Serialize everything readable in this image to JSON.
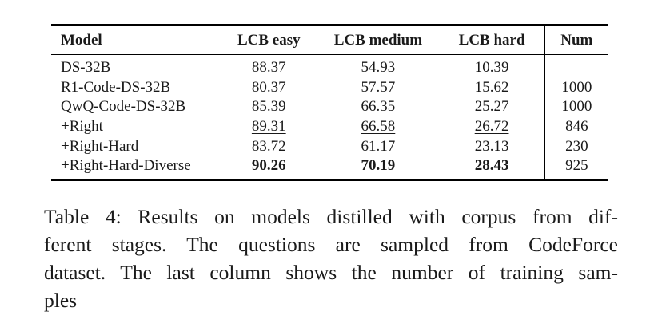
{
  "table": {
    "headers": [
      "Model",
      "LCB easy",
      "LCB medium",
      "LCB hard",
      "Num"
    ],
    "rows": [
      {
        "model": "DS-32B",
        "easy": "88.37",
        "medium": "54.93",
        "hard": "10.39",
        "num": ""
      },
      {
        "model": "R1-Code-DS-32B",
        "easy": "80.37",
        "medium": "57.57",
        "hard": "15.62",
        "num": "1000"
      },
      {
        "model": "QwQ-Code-DS-32B",
        "easy": "85.39",
        "medium": "66.35",
        "hard": "25.27",
        "num": "1000"
      },
      {
        "model": "+Right",
        "easy": "89.31",
        "medium": "66.58",
        "hard": "26.72",
        "num": "846"
      },
      {
        "model": "+Right-Hard",
        "easy": "83.72",
        "medium": "61.17",
        "hard": "23.13",
        "num": "230"
      },
      {
        "model": "+Right-Hard-Diverse",
        "easy": "90.26",
        "medium": "70.19",
        "hard": "28.43",
        "num": "925"
      }
    ]
  },
  "caption": {
    "lines": [
      "Table 4: Results on models distilled with corpus from dif-",
      "ferent stages. The questions are sampled from CodeForce",
      "dataset. The last column shows the number of training sam-",
      "ples"
    ]
  }
}
